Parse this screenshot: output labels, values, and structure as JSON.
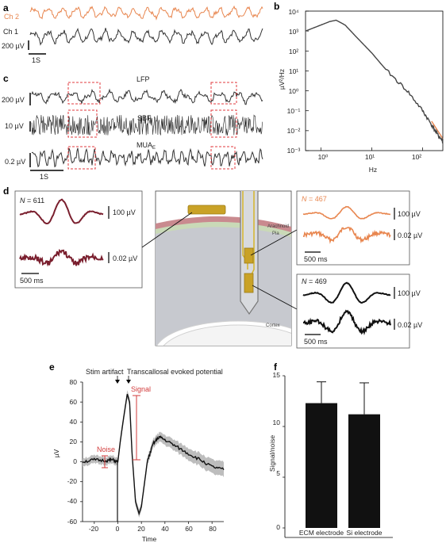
{
  "panels": {
    "a": {
      "label": "a",
      "ch2": "Ch 2",
      "ch1": "Ch 1",
      "scale_v": "200 µV",
      "scale_t": "1S",
      "colors": {
        "ch2": "#e8864f",
        "ch1": "#333333"
      }
    },
    "b": {
      "label": "b",
      "ylabel": "µV²/Hz",
      "xlabel": "Hz",
      "yticks": [
        "10⁴",
        "10³",
        "10²",
        "10¹",
        "10⁰",
        "10⁻¹",
        "10⁻²",
        "10⁻³"
      ],
      "xticks": [
        "10⁰",
        "10¹",
        "10²"
      ]
    },
    "c": {
      "label": "c",
      "lfp": "LFP",
      "sbf": "SBF",
      "mua": "MUA",
      "mua_sub": "E",
      "scale_lfp": "200 µV",
      "scale_sbf": "10 µV",
      "scale_mua": "0.2 µV",
      "scale_t": "1S"
    },
    "d": {
      "label": "d",
      "left": {
        "n": "611",
        "scale1": "100 µV",
        "scale2": "0.02 µV",
        "time": "500 ms",
        "color": "#7a1f2e"
      },
      "top_right": {
        "n": "467",
        "scale1": "100 µV",
        "scale2": "0.02 µV",
        "time": "500 ms",
        "color": "#e8864f"
      },
      "bottom_right": {
        "n": "469",
        "scale1": "100 µV",
        "scale2": "0.02 µV",
        "time": "500 ms",
        "color": "#111111"
      },
      "diagram": {
        "arachnoid": "Arachnoid",
        "pia": "Pia",
        "cortex": "Cortex"
      }
    },
    "e": {
      "label": "e",
      "stim": "Stim artifact",
      "tep": "Transcallosal evoked potential",
      "signal": "Signal",
      "noise": "Noise",
      "ylabel": "µV",
      "xlabel": "Time",
      "yticks": [
        "80",
        "60",
        "40",
        "20",
        "0",
        "-20",
        "-40",
        "-60"
      ],
      "xticks": [
        "-20",
        "0",
        "20",
        "40",
        "60",
        "80"
      ]
    },
    "f": {
      "label": "f",
      "ylabel": "Signal/noise",
      "yticks": [
        "15",
        "10",
        "5",
        "0"
      ]
    }
  },
  "chart_data": [
    {
      "type": "line",
      "title": "",
      "xlabel": "Hz",
      "ylabel": "µV²/Hz",
      "xscale": "log",
      "yscale": "log",
      "xlim": [
        0.5,
        250
      ],
      "ylim": [
        0.001,
        10000
      ],
      "x": [
        0.5,
        1,
        1.5,
        2,
        3,
        5,
        10,
        20,
        50,
        100,
        150,
        200,
        250
      ],
      "series": [
        {
          "values": [
            1000,
            2000,
            3000,
            3500,
            2000,
            500,
            80,
            10,
            1,
            0.1,
            0.02,
            0.006,
            0.003
          ]
        }
      ]
    },
    {
      "type": "line",
      "title": "",
      "xlabel": "Time",
      "ylabel": "µV",
      "xlim": [
        -30,
        90
      ],
      "ylim": [
        -60,
        80
      ],
      "x": [
        -30,
        -20,
        -10,
        -5,
        0,
        2,
        5,
        8,
        10,
        12,
        15,
        18,
        20,
        25,
        30,
        35,
        40,
        50,
        60,
        70,
        80,
        90
      ],
      "series": [
        {
          "values": [
            0,
            2,
            1,
            2,
            0,
            20,
            45,
            68,
            60,
            10,
            -40,
            -52,
            -45,
            0,
            18,
            25,
            22,
            15,
            8,
            2,
            -5,
            -8
          ]
        }
      ]
    },
    {
      "type": "bar",
      "title": "",
      "xlabel": "",
      "ylabel": "Signal/noise",
      "ylim": [
        0,
        15
      ],
      "categories": [
        "ECM electrode",
        "Si electrode"
      ],
      "values": [
        12.3,
        11.2
      ],
      "error": [
        2.1,
        3.1
      ]
    }
  ]
}
